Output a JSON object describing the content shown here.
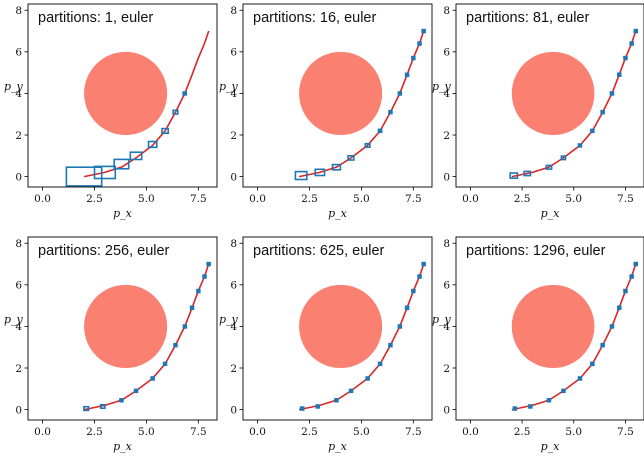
{
  "chart_data": [
    {
      "type": "scatter",
      "title_prefix": "partitions:",
      "partitions": "1",
      "method": "euler",
      "xlabel": "p_x",
      "ylabel": "p_y",
      "xlim": [
        -0.7,
        8.4
      ],
      "ylim": [
        -0.5,
        8.3
      ],
      "xticks": [
        "0.0",
        "2.5",
        "5.0",
        "7.5"
      ],
      "yticks": [
        "0",
        "2",
        "4",
        "6",
        "8"
      ],
      "obstacle": {
        "center": [
          4.0,
          4.0
        ],
        "radius": 2.0,
        "color": "#fa8072"
      },
      "trajectory_color": "#d62728",
      "box_color": "#1f77b4"
    },
    {
      "type": "scatter",
      "title_prefix": "partitions:",
      "partitions": "16",
      "method": "euler",
      "xlabel": "p_x",
      "ylabel": "p_y",
      "xlim": [
        -0.7,
        8.4
      ],
      "ylim": [
        -0.5,
        8.3
      ],
      "xticks": [
        "0.0",
        "2.5",
        "5.0",
        "7.5"
      ],
      "yticks": [
        "0",
        "2",
        "4",
        "6",
        "8"
      ],
      "obstacle": {
        "center": [
          4.0,
          4.0
        ],
        "radius": 2.0,
        "color": "#fa8072"
      },
      "trajectory_color": "#d62728",
      "box_color": "#1f77b4"
    },
    {
      "type": "scatter",
      "title_prefix": "partitions:",
      "partitions": "81",
      "method": "euler",
      "xlabel": "p_x",
      "ylabel": "p_y",
      "xlim": [
        -0.7,
        8.4
      ],
      "ylim": [
        -0.5,
        8.3
      ],
      "xticks": [
        "0.0",
        "2.5",
        "5.0",
        "7.5"
      ],
      "yticks": [
        "0",
        "2",
        "4",
        "6",
        "8"
      ],
      "obstacle": {
        "center": [
          4.0,
          4.0
        ],
        "radius": 2.0,
        "color": "#fa8072"
      },
      "trajectory_color": "#d62728",
      "box_color": "#1f77b4"
    },
    {
      "type": "scatter",
      "title_prefix": "partitions:",
      "partitions": "256",
      "method": "euler",
      "xlabel": "p_x",
      "ylabel": "p_y",
      "xlim": [
        -0.7,
        8.4
      ],
      "ylim": [
        -0.5,
        8.3
      ],
      "xticks": [
        "0.0",
        "2.5",
        "5.0",
        "7.5"
      ],
      "yticks": [
        "0",
        "2",
        "4",
        "6",
        "8"
      ],
      "obstacle": {
        "center": [
          4.0,
          4.0
        ],
        "radius": 2.0,
        "color": "#fa8072"
      },
      "trajectory_color": "#d62728",
      "box_color": "#1f77b4"
    },
    {
      "type": "scatter",
      "title_prefix": "partitions:",
      "partitions": "625",
      "method": "euler",
      "xlabel": "p_x",
      "ylabel": "p_y",
      "xlim": [
        -0.7,
        8.4
      ],
      "ylim": [
        -0.5,
        8.3
      ],
      "xticks": [
        "0.0",
        "2.5",
        "5.0",
        "7.5"
      ],
      "yticks": [
        "0",
        "2",
        "4",
        "6",
        "8"
      ],
      "obstacle": {
        "center": [
          4.0,
          4.0
        ],
        "radius": 2.0,
        "color": "#fa8072"
      },
      "trajectory_color": "#d62728",
      "box_color": "#1f77b4"
    },
    {
      "type": "scatter",
      "title_prefix": "partitions:",
      "partitions": "1296",
      "method": "euler",
      "xlabel": "p_x",
      "ylabel": "p_y",
      "xlim": [
        -0.7,
        8.4
      ],
      "ylim": [
        -0.5,
        8.3
      ],
      "xticks": [
        "0.0",
        "2.5",
        "5.0",
        "7.5"
      ],
      "yticks": [
        "0",
        "2",
        "4",
        "6",
        "8"
      ],
      "obstacle": {
        "center": [
          4.0,
          4.0
        ],
        "radius": 2.0,
        "color": "#fa8072"
      },
      "trajectory_color": "#d62728",
      "box_color": "#1f77b4"
    }
  ],
  "trajectory": {
    "x": [
      2.0,
      3.0,
      3.8,
      4.5,
      5.3,
      5.9,
      6.4,
      6.85,
      7.2,
      7.5,
      7.8,
      8.0
    ],
    "y": [
      0.0,
      0.2,
      0.45,
      0.9,
      1.5,
      2.2,
      3.1,
      4.0,
      4.9,
      5.7,
      6.4,
      7.0
    ]
  },
  "reach_sets": [
    {
      "x": [
        2.0,
        3.0,
        3.8,
        4.5,
        5.3,
        5.9,
        6.4,
        6.85
      ],
      "y": [
        0.0,
        0.2,
        0.6,
        1.0,
        1.55,
        2.2,
        3.1,
        4.0
      ],
      "w": [
        1.7,
        1.0,
        0.7,
        0.55,
        0.4,
        0.3,
        0.22,
        0.18
      ],
      "h": [
        0.9,
        0.58,
        0.45,
        0.35,
        0.28,
        0.22,
        0.18,
        0.15
      ]
    },
    {
      "x": [
        2.1,
        3.0,
        3.8,
        4.5,
        5.3,
        5.9,
        6.4,
        6.85,
        7.2,
        7.5,
        7.8,
        8.0
      ],
      "y": [
        0.05,
        0.2,
        0.45,
        0.9,
        1.5,
        2.2,
        3.1,
        4.0,
        4.9,
        5.7,
        6.4,
        7.0
      ],
      "w": [
        0.55,
        0.45,
        0.38,
        0.28,
        0.22,
        0.18,
        0.15,
        0.13,
        0.12,
        0.11,
        0.1,
        0.1
      ],
      "h": [
        0.38,
        0.3,
        0.25,
        0.2,
        0.16,
        0.14,
        0.12,
        0.11,
        0.1,
        0.1,
        0.1,
        0.1
      ]
    },
    {
      "x": [
        2.1,
        2.75,
        3.8,
        4.5,
        5.3,
        5.9,
        6.4,
        6.85,
        7.2,
        7.5,
        7.8,
        8.0
      ],
      "y": [
        0.05,
        0.15,
        0.45,
        0.9,
        1.5,
        2.2,
        3.1,
        4.0,
        4.9,
        5.7,
        6.4,
        7.0
      ],
      "w": [
        0.35,
        0.3,
        0.25,
        0.2,
        0.16,
        0.14,
        0.12,
        0.11,
        0.1,
        0.1,
        0.1,
        0.1
      ],
      "h": [
        0.25,
        0.2,
        0.18,
        0.15,
        0.13,
        0.12,
        0.1,
        0.1,
        0.1,
        0.1,
        0.1,
        0.1
      ]
    },
    {
      "x": [
        2.1,
        2.9,
        3.8,
        4.5,
        5.3,
        5.9,
        6.4,
        6.85,
        7.2,
        7.5,
        7.8,
        8.0
      ],
      "y": [
        0.05,
        0.15,
        0.45,
        0.9,
        1.5,
        2.2,
        3.1,
        4.0,
        4.9,
        5.7,
        6.4,
        7.0
      ],
      "w": [
        0.22,
        0.2,
        0.17,
        0.14,
        0.12,
        0.11,
        0.1,
        0.1,
        0.1,
        0.1,
        0.1,
        0.1
      ],
      "h": [
        0.18,
        0.15,
        0.13,
        0.12,
        0.11,
        0.1,
        0.1,
        0.1,
        0.1,
        0.1,
        0.1,
        0.1
      ]
    },
    {
      "x": [
        2.15,
        2.9,
        3.8,
        4.5,
        5.3,
        5.9,
        6.4,
        6.85,
        7.2,
        7.5,
        7.8,
        8.0
      ],
      "y": [
        0.05,
        0.15,
        0.45,
        0.9,
        1.5,
        2.2,
        3.1,
        4.0,
        4.9,
        5.7,
        6.4,
        7.0
      ],
      "w": [
        0.18,
        0.16,
        0.14,
        0.12,
        0.11,
        0.1,
        0.1,
        0.1,
        0.1,
        0.1,
        0.1,
        0.1
      ],
      "h": [
        0.14,
        0.13,
        0.12,
        0.11,
        0.1,
        0.1,
        0.1,
        0.1,
        0.1,
        0.1,
        0.1,
        0.1
      ]
    },
    {
      "x": [
        2.15,
        2.9,
        3.8,
        4.5,
        5.3,
        5.9,
        6.4,
        6.85,
        7.2,
        7.5,
        7.8,
        8.0
      ],
      "y": [
        0.05,
        0.15,
        0.45,
        0.9,
        1.5,
        2.2,
        3.1,
        4.0,
        4.9,
        5.7,
        6.4,
        7.0
      ],
      "w": [
        0.15,
        0.14,
        0.12,
        0.11,
        0.1,
        0.1,
        0.1,
        0.1,
        0.1,
        0.1,
        0.1,
        0.1
      ],
      "h": [
        0.12,
        0.12,
        0.11,
        0.1,
        0.1,
        0.1,
        0.1,
        0.1,
        0.1,
        0.1,
        0.1,
        0.1
      ]
    }
  ]
}
